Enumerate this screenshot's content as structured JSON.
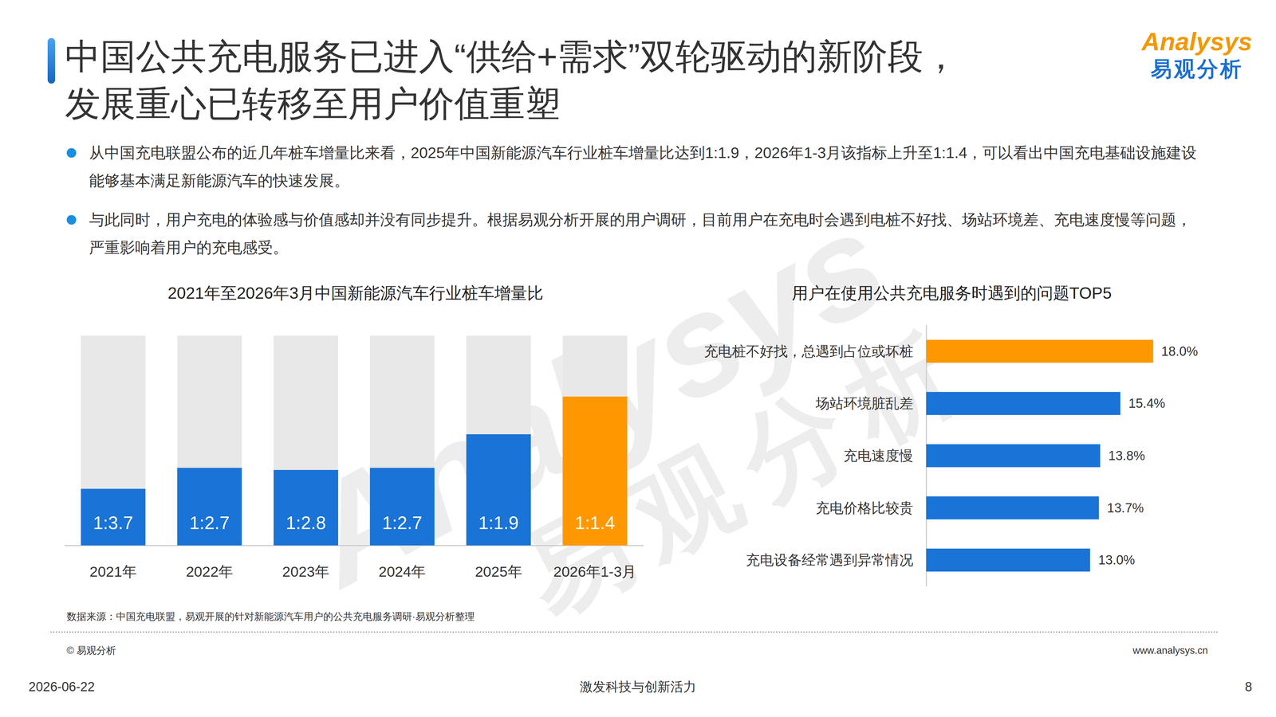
{
  "header": {
    "title": [
      "中国公共充电服务已进入“供给+需求”双轮驱动的新阶段，",
      "发展重心已转移至用户价值重塑"
    ],
    "logo": "Analysys",
    "logo_cn": "易观分析"
  },
  "bullets": [
    "从中国充电联盟公布的近几年桩车增量比来看，2025年中国新能源汽车行业桩车增量比达到1:1.9，2026年1-3月该指标上升至1:1.4，可以看出中国充电基础设施建设能够基本满足新能源汽车的快速发展。",
    "与此同时，用户充电的体验感与价值感却并没有同步提升。根据易观分析开展的用户调研，目前用户在充电时会遇到电桩不好找、场站环境差、充电速度慢等问题，严重影响着用户的充电感受。"
  ],
  "chart_data": [
    {
      "type": "bar",
      "title": "2021年至2026年3月中国新能源汽车行业桩车增量比",
      "categories": [
        "2021年",
        "2022年",
        "2023年",
        "2024年",
        "2025年",
        "2026年1-3月"
      ],
      "values": [
        0.27,
        0.37,
        0.36,
        0.37,
        0.53,
        0.71
      ],
      "value_labels": [
        "1:3.7",
        "1:2.7",
        "1:2.8",
        "1:2.7",
        "1:1.9",
        "1:1.4"
      ],
      "colors": [
        "#1a73d6",
        "#1a73d6",
        "#1a73d6",
        "#1a73d6",
        "#1a73d6",
        "#ff9800"
      ],
      "ylim": [
        0,
        1
      ],
      "data_labels": true,
      "tick_labels": "x",
      "grid": false
    },
    {
      "type": "bar",
      "orientation": "horizontal",
      "title": "用户在使用公共充电服务时遇到的问题TOP5",
      "categories": [
        "充电桩不好找，总遇到占位或坏桩",
        "场站环境脏乱差",
        "充电速度慢",
        "充电价格比较贵",
        "充电设备经常遇到异常情况"
      ],
      "values": [
        18.0,
        15.4,
        13.8,
        13.7,
        13.0
      ],
      "value_labels": [
        "18.0%",
        "15.4%",
        "13.8%",
        "13.7%",
        "13.0%"
      ],
      "colors": [
        "#ff9800",
        "#1a73d6",
        "#1a73d6",
        "#1a73d6",
        "#1a73d6"
      ],
      "xlim": [
        0,
        20
      ],
      "data_labels": true,
      "tick_labels": "y",
      "grid": false
    }
  ],
  "source": "数据来源：中国充电联盟，易观开展的针对新能源汽车用户的公共充电服务调研·易观分析整理",
  "footer": {
    "copyright": "© 易观分析",
    "website": "www.analysys.cn",
    "date": "2026-06-22",
    "slogan": "激发科技与创新活力",
    "page": "8"
  },
  "watermark": {
    "text_en": "Analysys",
    "text_cn": "易观分析"
  }
}
